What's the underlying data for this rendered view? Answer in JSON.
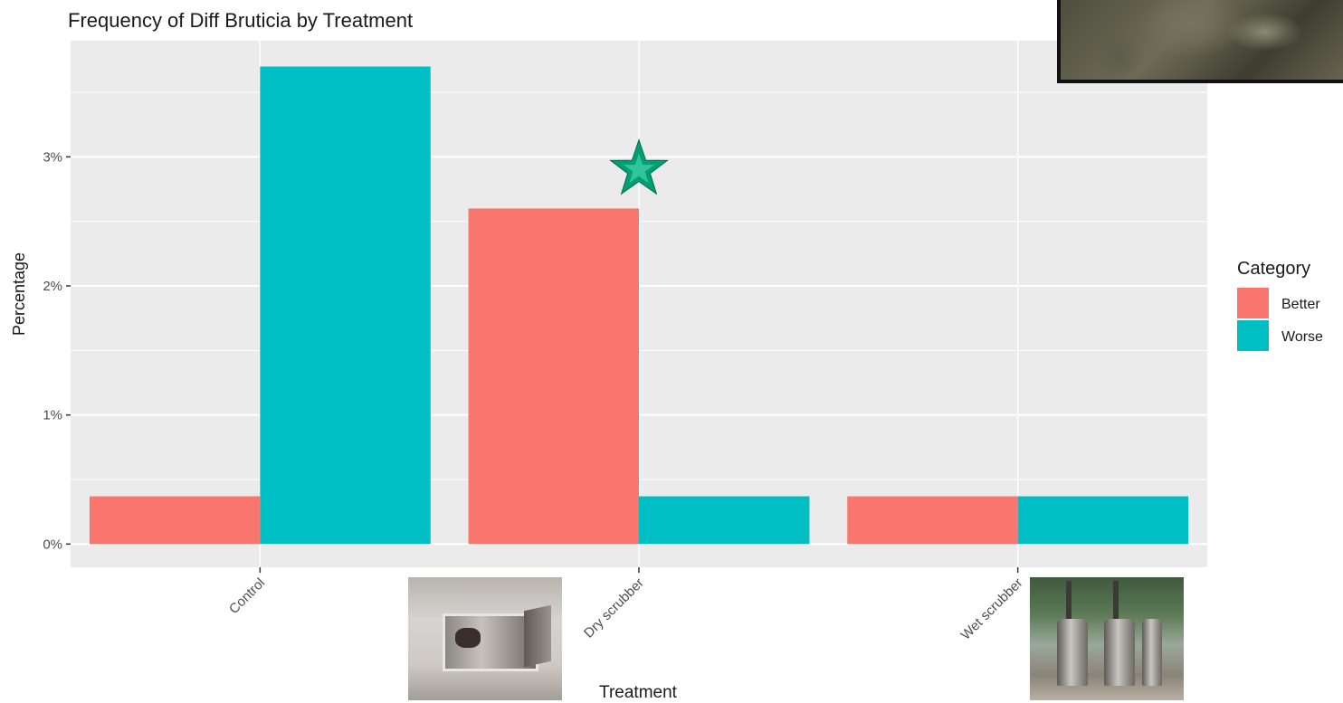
{
  "chart_data": {
    "type": "bar",
    "title": "Frequency of Diff Bruticia by Treatment",
    "xlabel": "Treatment",
    "ylabel": "Percentage",
    "categories": [
      "Control",
      "Dry scrubber",
      "Wet scrubber"
    ],
    "series": [
      {
        "name": "Better",
        "color": "#F8766D",
        "values": [
          0.37,
          2.6,
          0.37
        ]
      },
      {
        "name": "Worse",
        "color": "#00BFC4",
        "values": [
          3.7,
          0.37,
          0.37
        ]
      }
    ],
    "ylim": [
      -0.18,
      3.9
    ],
    "y_ticks": [
      {
        "value": 0,
        "label": "0%"
      },
      {
        "value": 1,
        "label": "1%"
      },
      {
        "value": 2,
        "label": "2%"
      },
      {
        "value": 3,
        "label": "3%"
      }
    ],
    "grid": true,
    "panel_background": "#EBEBEB",
    "legend": {
      "title": "Category",
      "position": "right",
      "entries": [
        "Better",
        "Worse"
      ]
    },
    "annotation": {
      "type": "star",
      "category": "Dry scrubber",
      "value": 2.9,
      "color": "#009E73"
    }
  },
  "photos": [
    {
      "subject": "rock-photo"
    },
    {
      "subject": "dry-scrubber-photo"
    },
    {
      "subject": "wet-scrubber-photo"
    }
  ]
}
